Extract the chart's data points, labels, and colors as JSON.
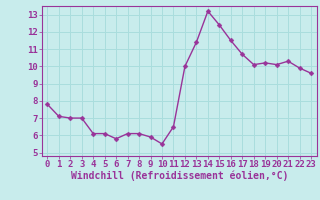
{
  "x": [
    0,
    1,
    2,
    3,
    4,
    5,
    6,
    7,
    8,
    9,
    10,
    11,
    12,
    13,
    14,
    15,
    16,
    17,
    18,
    19,
    20,
    21,
    22,
    23
  ],
  "y": [
    7.8,
    7.1,
    7.0,
    7.0,
    6.1,
    6.1,
    5.8,
    6.1,
    6.1,
    5.9,
    5.5,
    6.5,
    10.0,
    11.4,
    13.2,
    12.4,
    11.5,
    10.7,
    10.1,
    10.2,
    10.1,
    10.3,
    9.9,
    9.6
  ],
  "line_color": "#993399",
  "marker_color": "#993399",
  "bg_color": "#c8ecec",
  "grid_color": "#aadddd",
  "xlabel": "Windchill (Refroidissement éolien,°C)",
  "ylim": [
    4.8,
    13.5
  ],
  "xlim": [
    -0.5,
    23.5
  ],
  "yticks": [
    5,
    6,
    7,
    8,
    9,
    10,
    11,
    12,
    13
  ],
  "xticks": [
    0,
    1,
    2,
    3,
    4,
    5,
    6,
    7,
    8,
    9,
    10,
    11,
    12,
    13,
    14,
    15,
    16,
    17,
    18,
    19,
    20,
    21,
    22,
    23
  ],
  "tick_color": "#993399",
  "xlabel_color": "#993399",
  "xlabel_fontsize": 7,
  "tick_fontsize": 6.5,
  "linewidth": 1.0,
  "markersize": 2.5,
  "spine_color": "#993399"
}
